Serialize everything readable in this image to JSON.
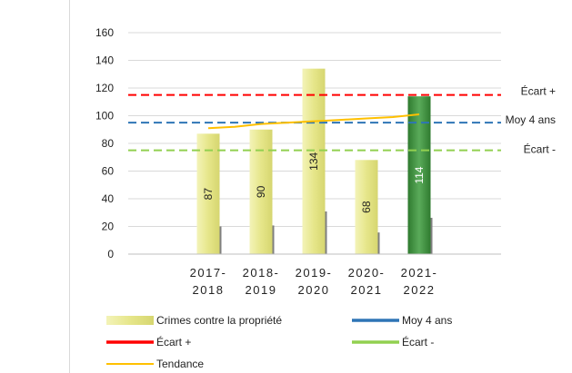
{
  "chart_data": {
    "type": "bar",
    "categories": [
      [
        "2017-",
        "2018"
      ],
      [
        "2018-",
        "2019"
      ],
      [
        "2019-",
        "2020"
      ],
      [
        "2020-",
        "2021"
      ],
      [
        "2021-",
        "2022"
      ]
    ],
    "series": [
      {
        "name": "Crimes contre la propriété",
        "type": "bar",
        "values": [
          87,
          90,
          134,
          68,
          114
        ]
      },
      {
        "name": "Moy 4 ans",
        "type": "hline",
        "value": 95,
        "color": "#2e75b6"
      },
      {
        "name": "Écart +",
        "type": "hline",
        "value": 115,
        "color": "#ff0000"
      },
      {
        "name": "Écart -",
        "type": "hline",
        "value": 75,
        "color": "#92d050"
      },
      {
        "name": "Tendance",
        "type": "line",
        "color": "#ffc000",
        "x": [
          0,
          0.5,
          1,
          1.5,
          2,
          2.5,
          3,
          3.5,
          4
        ],
        "values": [
          91,
          92,
          94,
          95,
          96,
          97,
          98,
          99,
          101
        ]
      }
    ],
    "ylim": [
      0,
      160
    ],
    "yticks": [
      0,
      20,
      40,
      60,
      80,
      100,
      120,
      140,
      160
    ],
    "grid": true,
    "legend_position": "bottom",
    "bar_color": "#e6e68a",
    "highlight_bar_color": "#3f8f3f",
    "highlight_index": 4,
    "ref_labels": {
      "upper": "Écart +",
      "mean": "Moy 4 ans",
      "lower": "Écart -"
    }
  }
}
